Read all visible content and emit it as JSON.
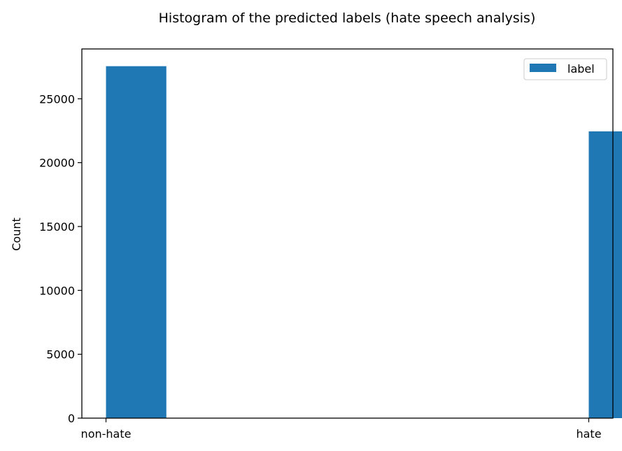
{
  "chart_data": {
    "type": "bar",
    "title": "Histogram of the predicted labels (hate speech analysis)",
    "xlabel": "",
    "ylabel": "Count",
    "categories": [
      "non-hate",
      "hate"
    ],
    "series": [
      {
        "name": "label",
        "values": [
          27550,
          22450
        ],
        "color": "#1f77b4"
      }
    ],
    "xlim": [
      -0.05,
      1.05
    ],
    "ylim": [
      0,
      28900
    ],
    "yticks": [
      0,
      5000,
      10000,
      15000,
      20000,
      25000
    ],
    "ytick_labels": [
      "0",
      "5000",
      "10000",
      "15000",
      "20000",
      "25000"
    ],
    "bar_width": 0.125,
    "grid": false,
    "legend_position": "upper right"
  }
}
